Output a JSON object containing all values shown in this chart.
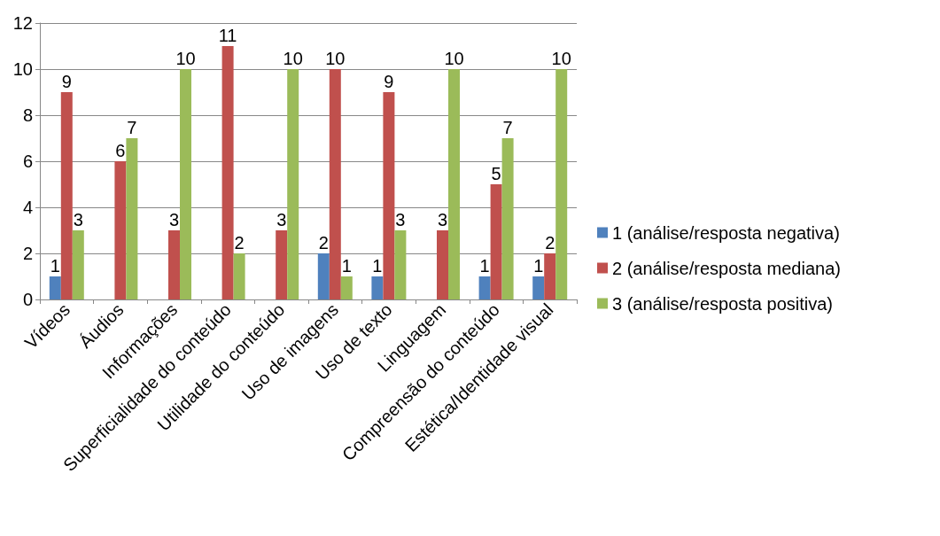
{
  "chart_data": {
    "type": "bar",
    "categories": [
      "Vídeos",
      "Áudios",
      "Informações",
      "Superficialidade do conteúdo",
      "Utilidade do conteúdo",
      "Uso de imagens",
      "Uso de texto",
      "Linguagem",
      "Compreensão do conteúdo",
      "Estética/Identidade visual"
    ],
    "series": [
      {
        "name": "1 (análise/resposta negativa)",
        "color": "#4f81bd",
        "values": [
          1,
          null,
          null,
          null,
          null,
          2,
          1,
          null,
          1,
          1
        ]
      },
      {
        "name": "2 (análise/resposta mediana)",
        "color": "#c0504d",
        "values": [
          9,
          6,
          3,
          11,
          3,
          10,
          9,
          3,
          5,
          2
        ]
      },
      {
        "name": "3 (análise/resposta positiva)",
        "color": "#9bbb59",
        "values": [
          3,
          7,
          10,
          2,
          10,
          1,
          3,
          10,
          7,
          10
        ]
      }
    ],
    "ylim": [
      0,
      12
    ],
    "yticks": [
      0,
      2,
      4,
      6,
      8,
      10,
      12
    ],
    "grid": "y",
    "legend": "right",
    "data_labels": true
  }
}
